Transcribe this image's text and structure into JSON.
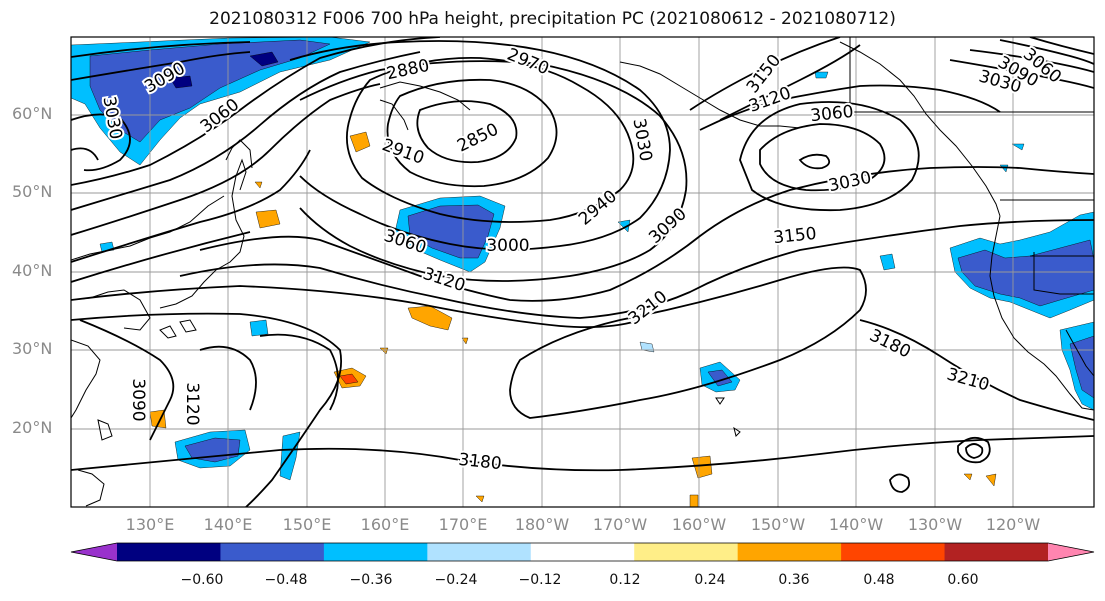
{
  "title": "2021080312 F006 700 hPa height, precipitation PC (2021080612 - 2021080712)",
  "lat_labels": [
    "60°N",
    "50°N",
    "40°N",
    "30°N",
    "20°N"
  ],
  "lon_labels": [
    "130°E",
    "140°E",
    "150°E",
    "160°E",
    "170°E",
    "180°W",
    "170°W",
    "160°W",
    "150°W",
    "140°W",
    "130°W",
    "120°W"
  ],
  "contour_labels": [
    "3090",
    "3060",
    "3030",
    "2880",
    "2970",
    "2850",
    "2910",
    "3030",
    "3150",
    "3120",
    "3060",
    "3030",
    "3060",
    "3030",
    "3090",
    "3060",
    "3000",
    "2940",
    "3090",
    "3150",
    "3120",
    "3210",
    "3180",
    "3210",
    "3090",
    "3120",
    "3180"
  ],
  "colorbar": {
    "ticks": [
      "−0.60",
      "−0.48",
      "−0.36",
      "−0.24",
      "−0.12",
      "0.12",
      "0.24",
      "0.36",
      "0.48",
      "0.60"
    ],
    "colors": [
      "#9932cc",
      "#000080",
      "#3a5bcc",
      "#00bfff",
      "#b0e2ff",
      "#ffffff",
      "#ffee88",
      "#ffa500",
      "#ff4500",
      "#b22222",
      "#ff85b0"
    ]
  },
  "colors": {
    "contour": "#000000",
    "grid": "#999999",
    "coast": "#000000"
  }
}
